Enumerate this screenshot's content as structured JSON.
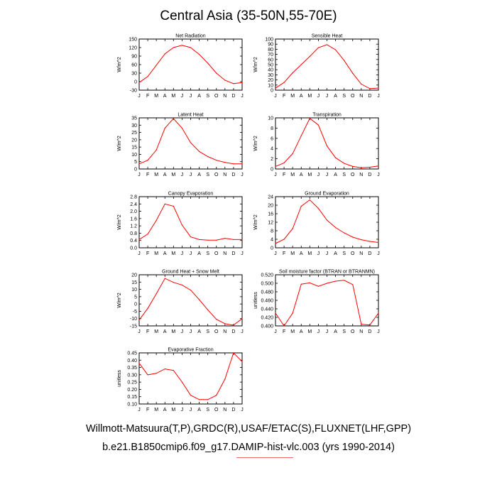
{
  "title": "Central Asia (35-50N,55-70E)",
  "footer": {
    "line1": "Willmott-Matsuura(T,P),GRDC(R),USAF/ETAC(S),FLUXNET(LHF,GPP)",
    "line2": "b.e21.B1850cmip6.f09_g17.DAMIP-hist-vlc.003 (yrs 1990-2014)"
  },
  "colors": {
    "line": "#ff0000",
    "axis": "#000000"
  },
  "chart_data": [
    {
      "type": "line",
      "title": "Net Radiation",
      "ylabel": "W/m^2",
      "categories": [
        "J",
        "F",
        "M",
        "A",
        "M",
        "J",
        "J",
        "A",
        "S",
        "O",
        "N",
        "D",
        "J"
      ],
      "values": [
        -3,
        18,
        58,
        98,
        120,
        128,
        120,
        96,
        65,
        30,
        5,
        -7,
        -3
      ],
      "ylim": [
        -30,
        150
      ],
      "yticks": [
        "150",
        "120",
        "90",
        "60",
        "30",
        "0",
        "-30"
      ]
    },
    {
      "type": "line",
      "title": "Sensible Heat",
      "ylabel": "W/m^2",
      "categories": [
        "J",
        "F",
        "M",
        "A",
        "M",
        "J",
        "J",
        "A",
        "S",
        "O",
        "N",
        "D",
        "J"
      ],
      "values": [
        4,
        15,
        34,
        50,
        66,
        83,
        89,
        79,
        58,
        33,
        12,
        3,
        4
      ],
      "ylim": [
        0,
        100
      ],
      "yticks": [
        "100",
        "90",
        "80",
        "70",
        "60",
        "50",
        "40",
        "30",
        "20",
        "10",
        "0"
      ]
    },
    {
      "type": "line",
      "title": "Latent Heat",
      "ylabel": "W/m^2",
      "categories": [
        "J",
        "F",
        "M",
        "A",
        "M",
        "J",
        "J",
        "A",
        "S",
        "O",
        "N",
        "D",
        "J"
      ],
      "values": [
        3.5,
        6,
        13,
        28,
        34.5,
        28,
        18,
        12,
        8.5,
        6,
        4.5,
        3.5,
        3.5
      ],
      "ylim": [
        0,
        35
      ],
      "yticks": [
        "35",
        "30",
        "25",
        "20",
        "15",
        "10",
        "5",
        "0"
      ]
    },
    {
      "type": "line",
      "title": "Transpiration",
      "ylabel": "W/m^2",
      "categories": [
        "J",
        "F",
        "M",
        "A",
        "M",
        "J",
        "J",
        "A",
        "S",
        "O",
        "N",
        "D",
        "J"
      ],
      "values": [
        0.5,
        1.2,
        3,
        6.5,
        9.9,
        8.6,
        4.5,
        2.2,
        1.1,
        0.5,
        0.25,
        0.35,
        0.6
      ],
      "ylim": [
        0,
        10
      ],
      "yticks": [
        "10",
        "8",
        "6",
        "4",
        "2",
        "0"
      ]
    },
    {
      "type": "line",
      "title": "Canopy Evaporation",
      "ylabel": "W/m^2",
      "categories": [
        "J",
        "F",
        "M",
        "A",
        "M",
        "J",
        "J",
        "A",
        "S",
        "O",
        "N",
        "D",
        "J"
      ],
      "values": [
        0.45,
        0.75,
        1.5,
        2.4,
        2.28,
        1.25,
        0.6,
        0.45,
        0.42,
        0.42,
        0.52,
        0.45,
        0.45
      ],
      "ylim": [
        0,
        2.8
      ],
      "yticks": [
        "2.8",
        "2.4",
        "2.0",
        "1.6",
        "1.2",
        "0.8",
        "0.4",
        "0.0"
      ]
    },
    {
      "type": "line",
      "title": "Ground Evaporation",
      "ylabel": "W/m^2",
      "categories": [
        "J",
        "F",
        "M",
        "A",
        "M",
        "J",
        "J",
        "A",
        "S",
        "O",
        "N",
        "D",
        "J"
      ],
      "values": [
        2,
        4,
        9,
        19.5,
        22.5,
        18.5,
        13,
        9.5,
        7,
        5,
        3.8,
        3,
        2.5
      ],
      "ylim": [
        0,
        24
      ],
      "yticks": [
        "24",
        "20",
        "16",
        "12",
        "8",
        "4",
        "0"
      ]
    },
    {
      "type": "line",
      "title": "Ground Heat + Snow Melt",
      "ylabel": "W/m^2",
      "categories": [
        "J",
        "F",
        "M",
        "A",
        "M",
        "J",
        "J",
        "A",
        "S",
        "O",
        "N",
        "D",
        "J"
      ],
      "values": [
        -11,
        -3,
        7,
        17.5,
        14.8,
        13,
        9.5,
        3,
        -4,
        -10.5,
        -13.5,
        -14.5,
        -10
      ],
      "ylim": [
        -15,
        20
      ],
      "yticks": [
        "20",
        "15",
        "10",
        "5",
        "0",
        "-5",
        "-10",
        "-15"
      ]
    },
    {
      "type": "line",
      "title": "Soil moisture factor (BTRAN or BTRANMN)",
      "ylabel": "unitless",
      "categories": [
        "J",
        "F",
        "M",
        "A",
        "M",
        "J",
        "J",
        "A",
        "S",
        "O",
        "N",
        "D",
        "J"
      ],
      "values": [
        0.43,
        0.4,
        0.43,
        0.498,
        0.501,
        0.493,
        0.5,
        0.505,
        0.507,
        0.497,
        0.404,
        0.402,
        0.43
      ],
      "ylim": [
        0.4,
        0.52
      ],
      "yticks": [
        "0.520",
        "0.500",
        "0.480",
        "0.460",
        "0.440",
        "0.420",
        "0.400"
      ]
    },
    {
      "type": "line",
      "title": "Evaporative Fraction",
      "ylabel": "unitless",
      "categories": [
        "J",
        "F",
        "M",
        "A",
        "M",
        "J",
        "J",
        "A",
        "S",
        "O",
        "N",
        "D",
        "J"
      ],
      "values": [
        0.38,
        0.3,
        0.31,
        0.34,
        0.33,
        0.25,
        0.16,
        0.13,
        0.13,
        0.16,
        0.27,
        0.45,
        0.39
      ],
      "ylim": [
        0.1,
        0.45
      ],
      "yticks": [
        "0.45",
        "0.40",
        "0.35",
        "0.30",
        "0.25",
        "0.20",
        "0.15",
        "0.10"
      ]
    }
  ]
}
